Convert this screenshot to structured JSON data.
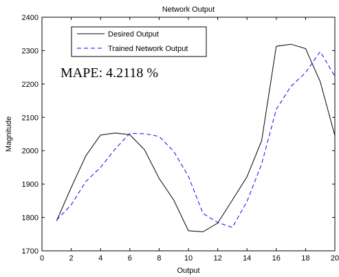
{
  "chart_data": {
    "type": "line",
    "title": "Network Output",
    "xlabel": "Output",
    "ylabel": "Magnitude",
    "xlim": [
      0,
      20
    ],
    "ylim": [
      1700,
      2400
    ],
    "xticks": [
      0,
      2,
      4,
      6,
      8,
      10,
      12,
      14,
      16,
      18,
      20
    ],
    "yticks": [
      1700,
      1800,
      1900,
      2000,
      2100,
      2200,
      2300,
      2400
    ],
    "grid": false,
    "legend_position": "top-left",
    "annotation": "MAPE: 4.2118 %",
    "series": [
      {
        "name": "Desired Output",
        "color": "#000000",
        "style": "solid",
        "x": [
          1,
          2,
          3,
          4,
          5,
          6,
          7,
          8,
          9,
          10,
          11,
          12,
          13,
          14,
          15,
          16,
          17,
          18,
          19,
          20
        ],
        "values": [
          1790,
          1890,
          1985,
          2047,
          2053,
          2048,
          2003,
          1917,
          1852,
          1760,
          1757,
          1783,
          1852,
          1922,
          2030,
          2313,
          2319,
          2306,
          2207,
          2045
        ]
      },
      {
        "name": "Trained Network Output",
        "color": "#0000ff",
        "style": "dashed",
        "x": [
          1,
          2,
          3,
          4,
          5,
          6,
          7,
          8,
          9,
          10,
          11,
          12,
          13,
          14,
          15,
          16,
          17,
          18,
          19,
          20
        ],
        "values": [
          1792,
          1838,
          1908,
          1950,
          2005,
          2052,
          2051,
          2043,
          1998,
          1923,
          1812,
          1785,
          1770,
          1848,
          1960,
          2124,
          2193,
          2234,
          2297,
          2223
        ]
      }
    ]
  }
}
